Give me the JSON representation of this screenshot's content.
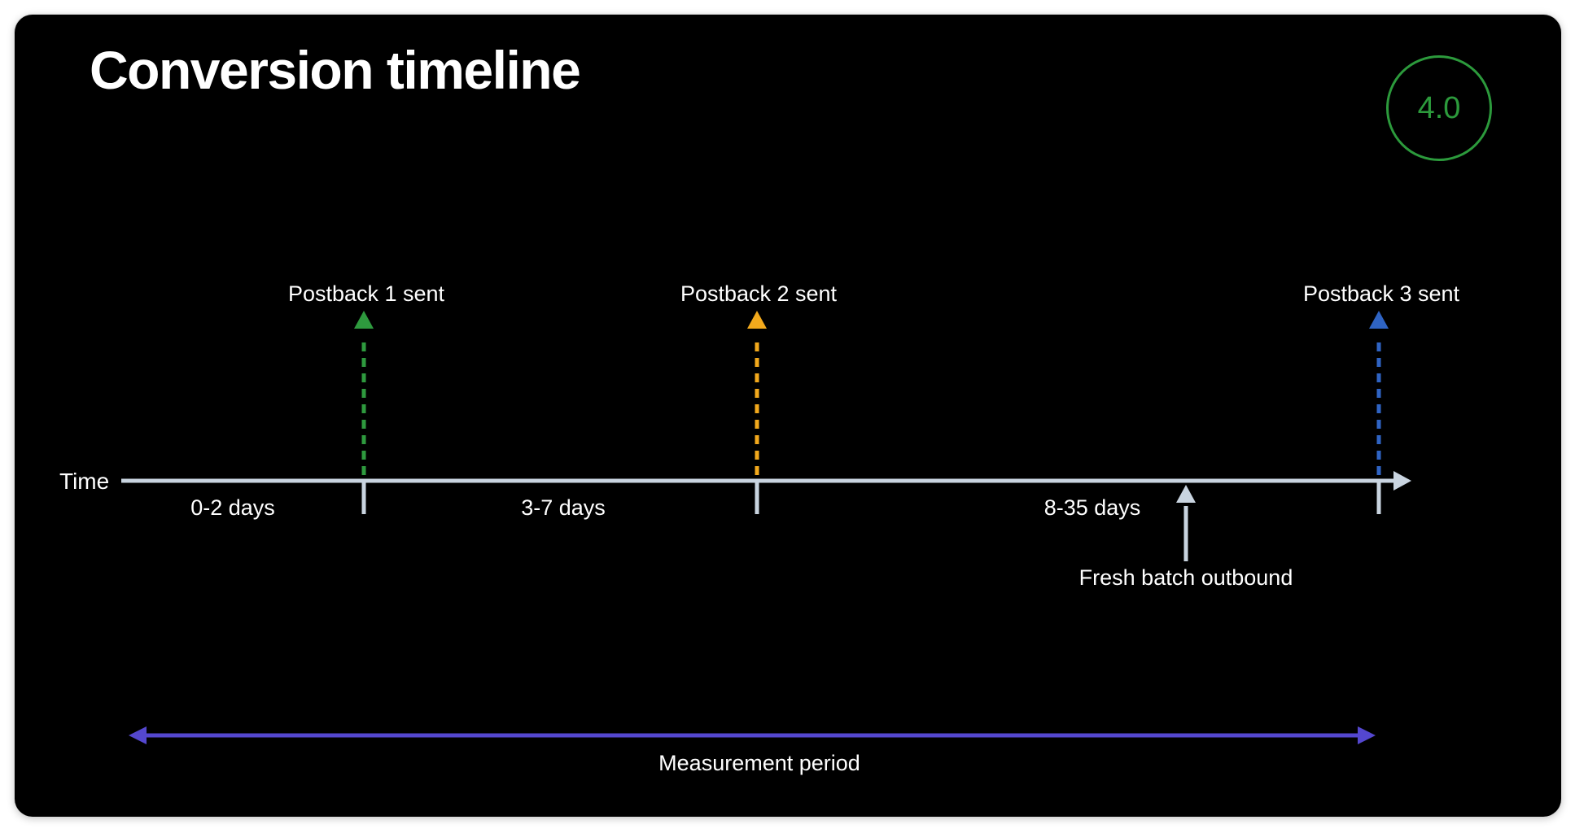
{
  "title": "Conversion timeline",
  "version": "4.0",
  "axis": {
    "label": "Time"
  },
  "intervals": [
    "0-2 days",
    "3-7 days",
    "8-35 days"
  ],
  "postbacks": [
    {
      "label": "Postback 1 sent",
      "color": "#2e9a3e"
    },
    {
      "label": "Postback 2 sent",
      "color": "#f2a91c"
    },
    {
      "label": "Postback 3 sent",
      "color": "#2f64c4"
    }
  ],
  "event": {
    "label": "Fresh batch outbound"
  },
  "measurement": {
    "label": "Measurement period",
    "color": "#5447cf"
  },
  "colors": {
    "axis": "#c9d4e0",
    "text": "#ffffff",
    "background": "#000000"
  }
}
